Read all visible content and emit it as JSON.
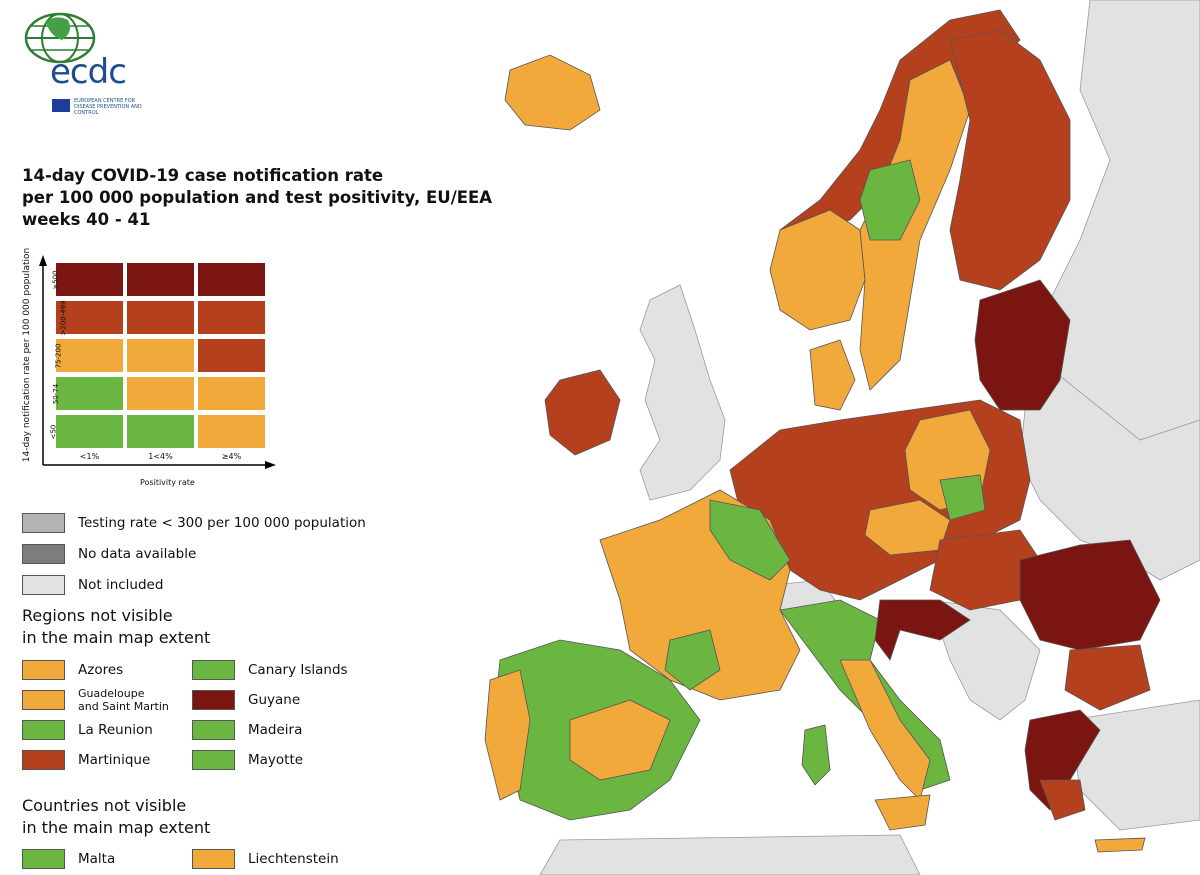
{
  "logo": {
    "wordmark": "ecdc",
    "subtitle": "European Centre for Disease Prevention and Control"
  },
  "title": {
    "line1": "14-day COVID-19 case notification rate",
    "line2": "per 100 000 population and test positivity, EU/EEA",
    "line3": "weeks 40 - 41"
  },
  "colors": {
    "dark_red": "#7b1512",
    "red": "#b5401e",
    "orange": "#f2a93b",
    "green": "#6ab640",
    "testing_grey": "#b3b3b3",
    "no_data_grey": "#7d7d7d",
    "not_included": "#e2e2e2",
    "sea": "#ffffff"
  },
  "matrix": {
    "y_axis_title": "14-day notification rate per 100 000 population",
    "x_axis_title": "Positivity rate",
    "rows": [
      "≥500",
      ">200-499",
      "75-200",
      "50-74",
      "<50"
    ],
    "cols": [
      "<1%",
      "1<4%",
      "≥4%"
    ],
    "cells": [
      [
        "dark_red",
        "dark_red",
        "dark_red"
      ],
      [
        "red",
        "red",
        "red"
      ],
      [
        "orange",
        "orange",
        "red"
      ],
      [
        "green",
        "orange",
        "orange"
      ],
      [
        "green",
        "green",
        "orange"
      ]
    ]
  },
  "legend": {
    "testing": "Testing rate < 300 per 100 000 population",
    "no_data": "No data available",
    "not_included": "Not included"
  },
  "regions_heading": {
    "line1": "Regions not visible",
    "line2": "in the main map extent"
  },
  "regions": [
    {
      "name": "Azores",
      "color": "orange"
    },
    {
      "name": "Canary Islands",
      "color": "green"
    },
    {
      "name": "Guadeloupe",
      "name2": "and Saint Martin",
      "color": "orange"
    },
    {
      "name": "Guyane",
      "color": "dark_red"
    },
    {
      "name": "La Reunion",
      "color": "green"
    },
    {
      "name": "Madeira",
      "color": "green"
    },
    {
      "name": "Martinique",
      "color": "red"
    },
    {
      "name": "Mayotte",
      "color": "green"
    }
  ],
  "countries_heading": {
    "line1": "Countries not visible",
    "line2": "in the main map extent"
  },
  "countries": [
    {
      "name": "Malta",
      "color": "green"
    },
    {
      "name": "Liechtenstein",
      "color": "orange"
    }
  ]
}
